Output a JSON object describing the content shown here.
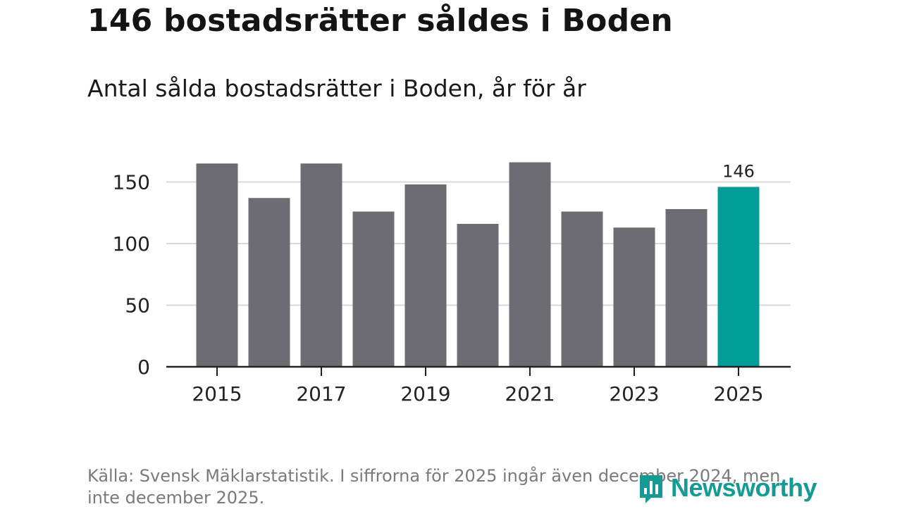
{
  "header": {
    "title": "146 bostadsrätter såldes i Boden",
    "subtitle": "Antal sålda bostadsrätter i Boden, år för år"
  },
  "footer": {
    "source": "Källa: Svensk Mäklarstatistik. I siffrorna för 2025 ingår även december 2024, men inte december 2025.",
    "logo_text": "Newsworthy",
    "logo_icon": "newsworthy-bar-chart-logo-icon"
  },
  "colors": {
    "bar": "#6d6c73",
    "highlight": "#009e96",
    "grid": "#d9d9d9",
    "axis": "#222222",
    "logo": "#159b95"
  },
  "chart_data": {
    "type": "bar",
    "title": "146 bostadsrätter såldes i Boden",
    "subtitle": "Antal sålda bostadsrätter i Boden, år för år",
    "xlabel": "",
    "ylabel": "",
    "categories": [
      "2015",
      "2016",
      "2017",
      "2018",
      "2019",
      "2020",
      "2021",
      "2022",
      "2023",
      "2024",
      "2025"
    ],
    "values": [
      165,
      137,
      165,
      126,
      148,
      116,
      166,
      126,
      113,
      128,
      146
    ],
    "highlight_index": 10,
    "annotations": [
      {
        "category": "2025",
        "label": "146"
      }
    ],
    "x_tick_labels": [
      "2015",
      "2017",
      "2019",
      "2021",
      "2023",
      "2025"
    ],
    "y_ticks": [
      0,
      50,
      100,
      150
    ],
    "y_tick_labels": [
      "0",
      "50",
      "100",
      "150"
    ],
    "ylim": [
      0,
      170
    ],
    "grid": true,
    "legend": "none"
  }
}
